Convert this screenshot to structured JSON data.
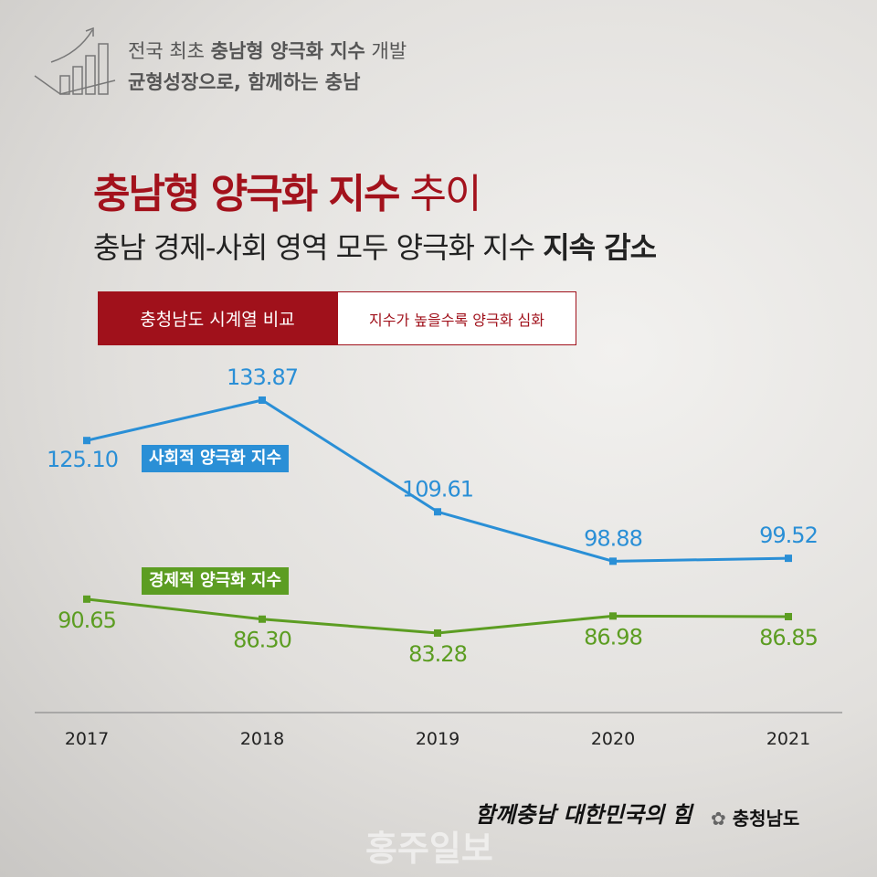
{
  "header": {
    "line1": [
      "전국 최초",
      "충남형 양극화 지수",
      "개발"
    ],
    "line2": "균형성장으로, 함께하는 충남"
  },
  "title": {
    "main": "충남형 양극화 지수",
    "rest": "추이"
  },
  "subtitle": {
    "main": "충남 경제-사회 영역 모두 양극화 지수",
    "bold": "지속 감소"
  },
  "tabs": {
    "active": "충청남도 시계열 비교",
    "note": "지수가 높을수록 양극화 심화"
  },
  "chart_data": {
    "type": "line",
    "categories": [
      "2017",
      "2018",
      "2019",
      "2020",
      "2021"
    ],
    "series": [
      {
        "name": "사회적 양극화 지수",
        "color": "#2a8fd6",
        "values": [
          125.1,
          133.87,
          109.61,
          98.88,
          99.52
        ],
        "value_labels": [
          "125.10",
          "133.87",
          "109.61",
          "98.88",
          "99.52"
        ]
      },
      {
        "name": "경제적 양극화 지수",
        "color": "#5c9d22",
        "values": [
          90.65,
          86.3,
          83.28,
          86.98,
          86.85
        ],
        "value_labels": [
          "90.65",
          "86.30",
          "83.28",
          "86.98",
          "86.85"
        ]
      }
    ]
  },
  "footer": {
    "slogan": "함께충남 대한민국의 힘",
    "org": "충청남도",
    "watermark": "홍주일보"
  }
}
